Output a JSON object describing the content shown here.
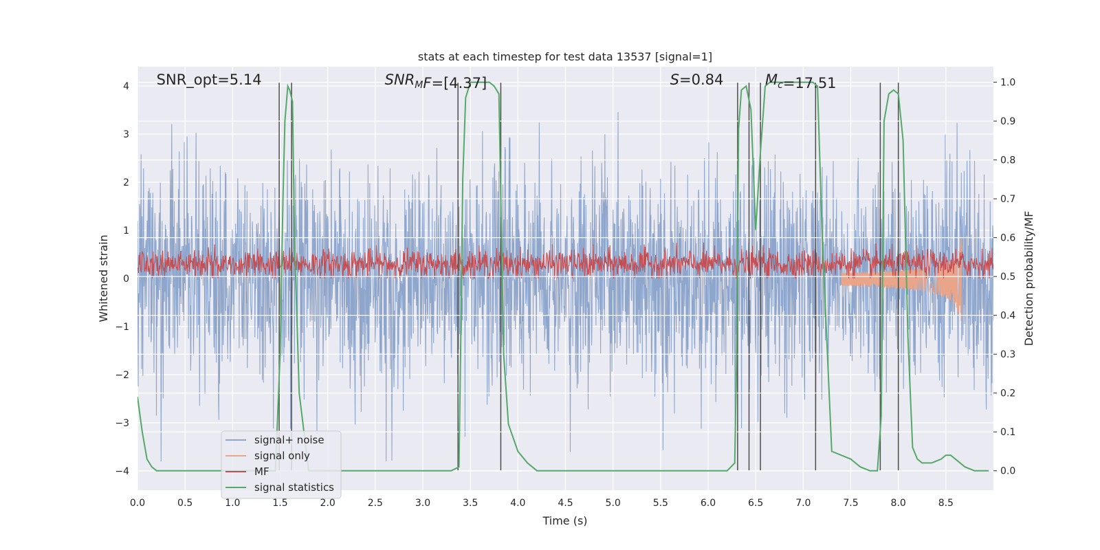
{
  "chart_data": {
    "type": "line",
    "title": "stats at each timestep for test data 13537 [signal=1]",
    "xlabel": "Time (s)",
    "ylabel": "Whitened strain",
    "y2label": "Detection probability/MF",
    "xlim": [
      0,
      9.0
    ],
    "ylim": [
      -4.4,
      4.4
    ],
    "y2lim": [
      -0.05,
      1.04
    ],
    "xticks": [
      "0.0",
      "0.5",
      "1.0",
      "1.5",
      "2.0",
      "2.5",
      "3.0",
      "3.5",
      "4.0",
      "4.5",
      "5.0",
      "5.5",
      "6.0",
      "6.5",
      "7.0",
      "7.5",
      "8.0",
      "8.5"
    ],
    "yticks": [
      "4",
      "3",
      "2",
      "1",
      "0",
      "−1",
      "−2",
      "−3",
      "−4"
    ],
    "y2ticks": [
      "1.0",
      "0.9",
      "0.8",
      "0.7",
      "0.6",
      "0.5",
      "0.4",
      "0.3",
      "0.2",
      "0.1",
      "0.0"
    ],
    "grid": true,
    "legend_position": "lower-left",
    "annotations": [
      {
        "name": "snr-opt",
        "prefix": "SNR_opt=",
        "value": "5.14",
        "x": 0.2
      },
      {
        "name": "snr-mf",
        "italic_main": "SNR",
        "italic_sub": "M",
        "italic_tail": "F",
        "suffix": "=[4.37]",
        "x": 2.6
      },
      {
        "name": "s-value",
        "italic_main": "S",
        "suffix": "=0.84",
        "x": 5.6
      },
      {
        "name": "mc-value",
        "italic_main": "M",
        "italic_sub": "c",
        "suffix": "=17.51",
        "x": 6.6
      }
    ],
    "series": [
      {
        "name": "signal+ noise",
        "color": "#8fa6cc",
        "axis": "left",
        "kind": "noise",
        "amplitude_range": [
          -3.8,
          4.0
        ]
      },
      {
        "name": "signal only",
        "color": "#e8a58a",
        "axis": "left",
        "kind": "chirp",
        "start": 7.4,
        "end": 8.67,
        "peak": [
          1.0,
          -1.25
        ]
      },
      {
        "name": "MF",
        "color": "#c44e52",
        "axis": "left",
        "kind": "mf",
        "range": [
          0.0,
          0.9
        ]
      },
      {
        "name": "signal statistics",
        "color": "#55a868",
        "axis": "right",
        "kind": "line",
        "x": [
          0.0,
          0.05,
          0.1,
          0.15,
          0.2,
          0.3,
          0.5,
          0.55,
          0.7,
          0.9,
          1.0,
          1.2,
          1.4,
          1.45,
          1.5,
          1.53,
          1.55,
          1.58,
          1.6,
          1.63,
          1.65,
          1.7,
          1.8,
          2.0,
          2.5,
          3.0,
          3.3,
          3.38,
          3.4,
          3.42,
          3.45,
          3.5,
          3.6,
          3.7,
          3.75,
          3.8,
          3.85,
          3.9,
          4.0,
          4.1,
          4.2,
          4.3,
          4.5,
          5.0,
          5.5,
          6.0,
          6.2,
          6.28,
          6.3,
          6.32,
          6.35,
          6.4,
          6.45,
          6.5,
          6.55,
          6.6,
          6.65,
          6.7,
          6.8,
          7.0,
          7.1,
          7.15,
          7.2,
          7.3,
          7.5,
          7.6,
          7.7,
          7.78,
          7.82,
          7.85,
          7.9,
          7.95,
          8.0,
          8.05,
          8.1,
          8.15,
          8.2,
          8.25,
          8.35,
          8.45,
          8.5,
          8.55,
          8.6,
          8.7,
          8.8,
          8.95
        ],
        "y": [
          0.19,
          0.1,
          0.03,
          0.01,
          0.0,
          0.0,
          0.0,
          0.0,
          0.0,
          0.0,
          0.0,
          0.0,
          0.0,
          0.0,
          0.3,
          0.7,
          0.9,
          0.99,
          0.98,
          0.95,
          0.6,
          0.2,
          0.0,
          0.0,
          0.0,
          0.0,
          0.0,
          0.01,
          0.35,
          0.75,
          0.96,
          1.0,
          1.0,
          1.0,
          0.99,
          0.97,
          0.3,
          0.12,
          0.05,
          0.02,
          0.0,
          0.0,
          0.0,
          0.0,
          0.0,
          0.0,
          0.0,
          0.02,
          0.3,
          0.88,
          0.98,
          0.99,
          0.93,
          0.62,
          0.82,
          0.99,
          1.0,
          1.0,
          1.0,
          1.0,
          1.0,
          0.99,
          0.6,
          0.05,
          0.03,
          0.01,
          0.0,
          0.0,
          0.14,
          0.9,
          0.97,
          0.98,
          0.97,
          0.85,
          0.35,
          0.06,
          0.03,
          0.02,
          0.02,
          0.03,
          0.04,
          0.04,
          0.03,
          0.01,
          0.0,
          0.0
        ]
      }
    ],
    "vertical_lines": [
      1.49,
      1.62,
      3.37,
      3.82,
      6.31,
      6.43,
      6.55,
      7.13,
      7.81,
      8.0
    ]
  }
}
